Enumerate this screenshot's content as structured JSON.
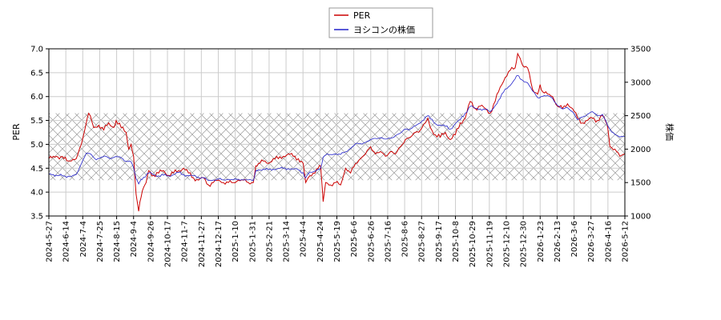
{
  "chart_data": {
    "type": "line",
    "title": "",
    "xlabel": "",
    "ylabel_left": "PER",
    "ylabel_right": "株価",
    "ylim_left": [
      3.5,
      7.0
    ],
    "ylim_right": [
      1000,
      3500
    ],
    "yticks_left": [
      "3.5",
      "4.0",
      "4.5",
      "5.0",
      "5.5",
      "6.0",
      "6.5",
      "7.0"
    ],
    "yticks_right": [
      "1000",
      "1500",
      "2000",
      "2500",
      "3000",
      "3500"
    ],
    "x_ticks": [
      "2024-5-27",
      "2024-6-14",
      "2024-7-4",
      "2024-7-25",
      "2024-8-15",
      "2024-9-4",
      "2024-9-26",
      "2024-10-17",
      "2024-11-7",
      "2024-11-27",
      "2024-12-17",
      "2025-1-10",
      "2025-1-31",
      "2025-2-21",
      "2025-3-14",
      "2025-4-4",
      "2025-4-24",
      "2025-5-19",
      "2025-6-6",
      "2025-6-26",
      "2025-7-16",
      "2025-8-6",
      "2025-8-27",
      "2025-9-17",
      "2025-10-8",
      "2025-10-29",
      "2025-11-19",
      "2025-12-10",
      "2025-12-30",
      "2026-1-23",
      "2026-2-13",
      "2026-3-6",
      "2026-3-27",
      "2026-4-16",
      "2026-5-12"
    ],
    "grid": true,
    "legend_position": "top-center",
    "hatched_band_left": [
      4.25,
      5.65
    ],
    "series": [
      {
        "name": "PER",
        "axis": "left",
        "color": "#cc0000",
        "points": [
          [
            0,
            4.7
          ],
          [
            3,
            4.75
          ],
          [
            6,
            4.7
          ],
          [
            9,
            4.65
          ],
          [
            11,
            4.7
          ],
          [
            13,
            5.0
          ],
          [
            15,
            5.45
          ],
          [
            16,
            5.65
          ],
          [
            18,
            5.35
          ],
          [
            20,
            5.4
          ],
          [
            22,
            5.3
          ],
          [
            24,
            5.45
          ],
          [
            26,
            5.35
          ],
          [
            27,
            5.5
          ],
          [
            29,
            5.35
          ],
          [
            31,
            5.25
          ],
          [
            32,
            4.9
          ],
          [
            33,
            5.0
          ],
          [
            34,
            4.75
          ],
          [
            35,
            3.95
          ],
          [
            36,
            3.6
          ],
          [
            37,
            3.9
          ],
          [
            38,
            4.1
          ],
          [
            39,
            4.2
          ],
          [
            40,
            4.45
          ],
          [
            42,
            4.35
          ],
          [
            44,
            4.4
          ],
          [
            46,
            4.45
          ],
          [
            48,
            4.35
          ],
          [
            50,
            4.4
          ],
          [
            52,
            4.45
          ],
          [
            54,
            4.5
          ],
          [
            56,
            4.4
          ],
          [
            58,
            4.3
          ],
          [
            60,
            4.25
          ],
          [
            62,
            4.3
          ],
          [
            64,
            4.15
          ],
          [
            66,
            4.2
          ],
          [
            68,
            4.25
          ],
          [
            70,
            4.2
          ],
          [
            72,
            4.2
          ],
          [
            74,
            4.2
          ],
          [
            76,
            4.25
          ],
          [
            78,
            4.25
          ],
          [
            80,
            4.2
          ],
          [
            82,
            4.2
          ],
          [
            83,
            4.55
          ],
          [
            84,
            4.6
          ],
          [
            86,
            4.65
          ],
          [
            88,
            4.6
          ],
          [
            90,
            4.7
          ],
          [
            92,
            4.7
          ],
          [
            94,
            4.75
          ],
          [
            96,
            4.8
          ],
          [
            98,
            4.75
          ],
          [
            100,
            4.7
          ],
          [
            102,
            4.6
          ],
          [
            103,
            4.2
          ],
          [
            104,
            4.3
          ],
          [
            106,
            4.4
          ],
          [
            108,
            4.5
          ],
          [
            109,
            4.55
          ],
          [
            110,
            3.8
          ],
          [
            111,
            4.2
          ],
          [
            113,
            4.15
          ],
          [
            115,
            4.2
          ],
          [
            117,
            4.15
          ],
          [
            119,
            4.5
          ],
          [
            121,
            4.4
          ],
          [
            123,
            4.6
          ],
          [
            125,
            4.7
          ],
          [
            127,
            4.8
          ],
          [
            129,
            4.95
          ],
          [
            131,
            4.8
          ],
          [
            133,
            4.85
          ],
          [
            135,
            4.75
          ],
          [
            137,
            4.85
          ],
          [
            139,
            4.8
          ],
          [
            141,
            4.95
          ],
          [
            143,
            5.1
          ],
          [
            145,
            5.15
          ],
          [
            147,
            5.25
          ],
          [
            149,
            5.3
          ],
          [
            151,
            5.45
          ],
          [
            152,
            5.55
          ],
          [
            153,
            5.35
          ],
          [
            155,
            5.2
          ],
          [
            157,
            5.15
          ],
          [
            159,
            5.25
          ],
          [
            161,
            5.1
          ],
          [
            163,
            5.2
          ],
          [
            165,
            5.45
          ],
          [
            167,
            5.55
          ],
          [
            169,
            5.9
          ],
          [
            171,
            5.75
          ],
          [
            173,
            5.8
          ],
          [
            175,
            5.75
          ],
          [
            177,
            5.65
          ],
          [
            179,
            5.9
          ],
          [
            181,
            6.2
          ],
          [
            183,
            6.4
          ],
          [
            185,
            6.55
          ],
          [
            187,
            6.6
          ],
          [
            188,
            6.9
          ],
          [
            189,
            6.8
          ],
          [
            190,
            6.65
          ],
          [
            192,
            6.6
          ],
          [
            194,
            6.15
          ],
          [
            196,
            6.05
          ],
          [
            197,
            6.25
          ],
          [
            198,
            6.1
          ],
          [
            200,
            6.05
          ],
          [
            202,
            6.0
          ],
          [
            204,
            5.8
          ],
          [
            206,
            5.75
          ],
          [
            208,
            5.85
          ],
          [
            210,
            5.75
          ],
          [
            212,
            5.55
          ],
          [
            214,
            5.45
          ],
          [
            216,
            5.5
          ],
          [
            218,
            5.55
          ],
          [
            220,
            5.5
          ],
          [
            222,
            5.6
          ],
          [
            224,
            5.4
          ],
          [
            225,
            4.95
          ],
          [
            227,
            4.9
          ],
          [
            229,
            4.75
          ],
          [
            231,
            4.8
          ]
        ]
      },
      {
        "name": "ヨシコンの株価",
        "axis": "right",
        "color": "#2222cc",
        "points": [
          [
            0,
            1630
          ],
          [
            3,
            1610
          ],
          [
            6,
            1600
          ],
          [
            9,
            1590
          ],
          [
            11,
            1620
          ],
          [
            13,
            1780
          ],
          [
            15,
            1940
          ],
          [
            17,
            1920
          ],
          [
            19,
            1840
          ],
          [
            21,
            1880
          ],
          [
            23,
            1890
          ],
          [
            25,
            1860
          ],
          [
            27,
            1890
          ],
          [
            29,
            1870
          ],
          [
            31,
            1820
          ],
          [
            33,
            1810
          ],
          [
            34,
            1720
          ],
          [
            35,
            1560
          ],
          [
            36,
            1480
          ],
          [
            37,
            1550
          ],
          [
            38,
            1580
          ],
          [
            40,
            1640
          ],
          [
            42,
            1620
          ],
          [
            44,
            1600
          ],
          [
            46,
            1610
          ],
          [
            48,
            1600
          ],
          [
            50,
            1620
          ],
          [
            52,
            1650
          ],
          [
            54,
            1620
          ],
          [
            56,
            1600
          ],
          [
            58,
            1600
          ],
          [
            60,
            1580
          ],
          [
            62,
            1570
          ],
          [
            64,
            1530
          ],
          [
            66,
            1540
          ],
          [
            68,
            1550
          ],
          [
            70,
            1540
          ],
          [
            72,
            1550
          ],
          [
            74,
            1540
          ],
          [
            76,
            1550
          ],
          [
            78,
            1540
          ],
          [
            80,
            1540
          ],
          [
            82,
            1530
          ],
          [
            83,
            1680
          ],
          [
            84,
            1690
          ],
          [
            86,
            1700
          ],
          [
            88,
            1690
          ],
          [
            90,
            1700
          ],
          [
            92,
            1710
          ],
          [
            94,
            1710
          ],
          [
            96,
            1710
          ],
          [
            98,
            1700
          ],
          [
            100,
            1690
          ],
          [
            102,
            1650
          ],
          [
            103,
            1570
          ],
          [
            104,
            1630
          ],
          [
            106,
            1660
          ],
          [
            108,
            1700
          ],
          [
            109,
            1720
          ],
          [
            110,
            1880
          ],
          [
            111,
            1910
          ],
          [
            113,
            1920
          ],
          [
            115,
            1930
          ],
          [
            117,
            1920
          ],
          [
            119,
            1960
          ],
          [
            121,
            2010
          ],
          [
            123,
            2080
          ],
          [
            125,
            2080
          ],
          [
            127,
            2100
          ],
          [
            129,
            2140
          ],
          [
            131,
            2160
          ],
          [
            133,
            2170
          ],
          [
            135,
            2150
          ],
          [
            137,
            2160
          ],
          [
            139,
            2200
          ],
          [
            141,
            2240
          ],
          [
            143,
            2300
          ],
          [
            145,
            2300
          ],
          [
            147,
            2350
          ],
          [
            149,
            2390
          ],
          [
            151,
            2480
          ],
          [
            152,
            2500
          ],
          [
            153,
            2450
          ],
          [
            155,
            2380
          ],
          [
            157,
            2360
          ],
          [
            159,
            2340
          ],
          [
            161,
            2300
          ],
          [
            163,
            2380
          ],
          [
            165,
            2440
          ],
          [
            167,
            2540
          ],
          [
            169,
            2640
          ],
          [
            171,
            2610
          ],
          [
            173,
            2600
          ],
          [
            175,
            2590
          ],
          [
            177,
            2560
          ],
          [
            179,
            2650
          ],
          [
            181,
            2760
          ],
          [
            183,
            2900
          ],
          [
            185,
            2950
          ],
          [
            187,
            3050
          ],
          [
            188,
            3100
          ],
          [
            189,
            3050
          ],
          [
            190,
            3030
          ],
          [
            192,
            2990
          ],
          [
            194,
            2870
          ],
          [
            196,
            2770
          ],
          [
            198,
            2790
          ],
          [
            200,
            2800
          ],
          [
            202,
            2760
          ],
          [
            204,
            2650
          ],
          [
            206,
            2600
          ],
          [
            208,
            2620
          ],
          [
            210,
            2560
          ],
          [
            212,
            2440
          ],
          [
            214,
            2480
          ],
          [
            216,
            2520
          ],
          [
            218,
            2560
          ],
          [
            220,
            2500
          ],
          [
            222,
            2520
          ],
          [
            224,
            2360
          ],
          [
            225,
            2300
          ],
          [
            227,
            2220
          ],
          [
            229,
            2180
          ],
          [
            231,
            2190
          ]
        ]
      }
    ]
  }
}
